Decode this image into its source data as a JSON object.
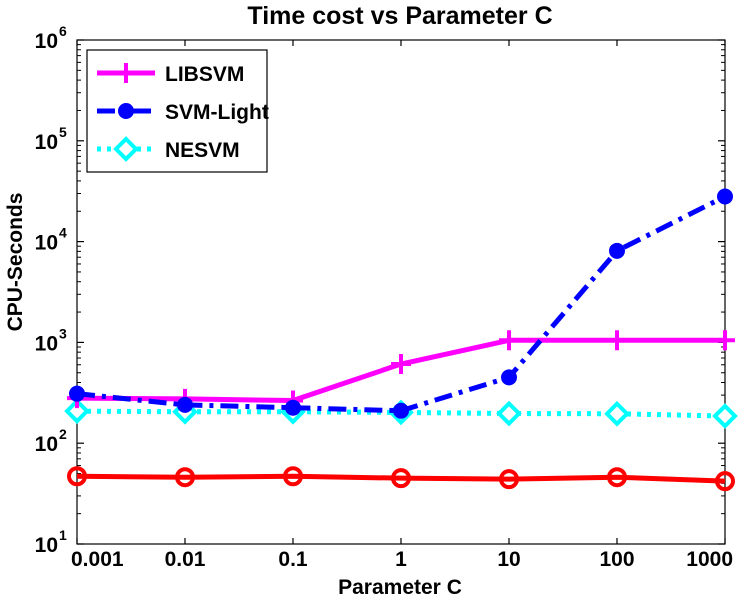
{
  "chart_data": {
    "type": "line",
    "title": "Time cost vs Parameter C",
    "xlabel": "Parameter C",
    "ylabel": "CPU-Seconds",
    "yscale": "log",
    "ylim": [
      10,
      1000000
    ],
    "categories": [
      "0.001",
      "0.01",
      "0.1",
      "1",
      "10",
      "100",
      "1000"
    ],
    "y_ticks": [
      {
        "base": "10",
        "exp": "1"
      },
      {
        "base": "10",
        "exp": "2"
      },
      {
        "base": "10",
        "exp": "3"
      },
      {
        "base": "10",
        "exp": "4"
      },
      {
        "base": "10",
        "exp": "5"
      },
      {
        "base": "10",
        "exp": "6"
      }
    ],
    "legend_position": "top-left",
    "series": [
      {
        "name": "LIBSVM",
        "color": "#ff00ff",
        "line": "solid",
        "marker": "plus",
        "in_legend": true,
        "values": [
          280,
          275,
          265,
          610,
          1050,
          1050,
          1050
        ]
      },
      {
        "name": "SVM-Light",
        "color": "#0000ff",
        "line": "dashdot",
        "marker": "circle-filled",
        "in_legend": true,
        "values": [
          310,
          240,
          225,
          210,
          450,
          8100,
          28000
        ]
      },
      {
        "name": "NESVM",
        "color": "#00ffff",
        "line": "dotted",
        "marker": "diamond",
        "in_legend": true,
        "values": [
          208,
          205,
          205,
          202,
          197,
          196,
          186
        ]
      },
      {
        "name": "",
        "color": "#ff0000",
        "line": "solid",
        "marker": "circle-open",
        "in_legend": false,
        "values": [
          47,
          46,
          47,
          45,
          44,
          46,
          42
        ]
      }
    ]
  }
}
